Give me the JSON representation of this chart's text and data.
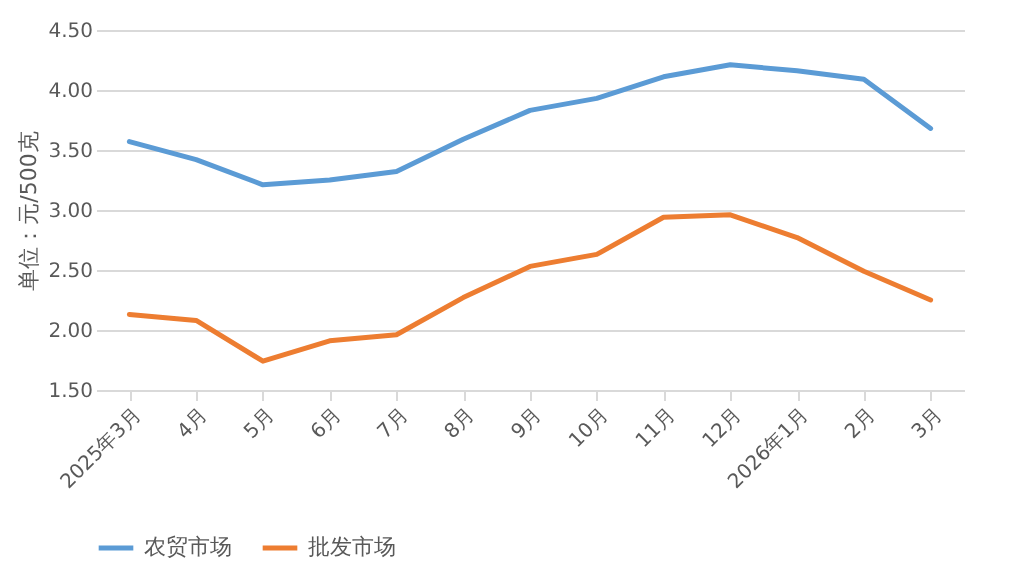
{
  "chart_data": {
    "type": "line",
    "ylabel": "单位：元/500克",
    "categories": [
      "2025年3月",
      "4月",
      "5月",
      "6月",
      "7月",
      "8月",
      "9月",
      "10月",
      "11月",
      "12月",
      "2026年1月",
      "2月",
      "3月"
    ],
    "series": [
      {
        "name": "农贸市场",
        "color": "#5b9bd5",
        "values": [
          3.57,
          3.42,
          3.21,
          3.25,
          3.32,
          3.59,
          3.83,
          3.93,
          4.11,
          4.21,
          4.16,
          4.09,
          3.68
        ]
      },
      {
        "name": "批发市场",
        "color": "#ed7d31",
        "values": [
          2.13,
          2.08,
          1.74,
          1.91,
          1.96,
          2.27,
          2.53,
          2.63,
          2.94,
          2.96,
          2.77,
          2.49,
          2.25
        ]
      }
    ],
    "ylim": [
      1.5,
      4.5
    ],
    "yticks": [
      {
        "value": 1.5,
        "label": "1.50"
      },
      {
        "value": 2,
        "label": "2.00"
      },
      {
        "value": 2.5,
        "label": "2.50"
      },
      {
        "value": 3,
        "label": "3.00"
      },
      {
        "value": 3.5,
        "label": "3.50"
      },
      {
        "value": 4,
        "label": "4.00"
      },
      {
        "value": 4.5,
        "label": "4.50"
      }
    ],
    "grid": "y",
    "legend": "bottom",
    "marker": "none",
    "line_style": "solid"
  }
}
